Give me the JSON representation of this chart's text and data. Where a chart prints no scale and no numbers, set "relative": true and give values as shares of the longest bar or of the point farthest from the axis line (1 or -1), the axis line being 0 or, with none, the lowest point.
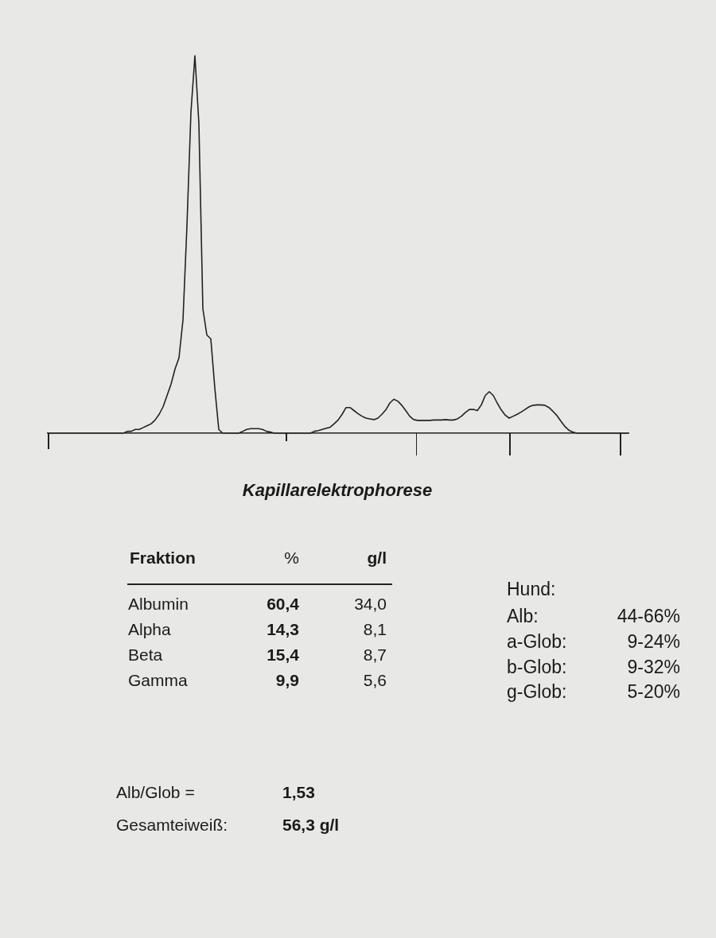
{
  "chart_data": {
    "type": "line",
    "title": "Kapillarelektrophorese",
    "relative": true,
    "categories": [
      null,
      null,
      null,
      null,
      null,
      null,
      null,
      null,
      null,
      null,
      null,
      null,
      null,
      null,
      null,
      null,
      null,
      null,
      null,
      null,
      null,
      null,
      null,
      null,
      null,
      null,
      null,
      null,
      null,
      null,
      null,
      null,
      null,
      null,
      null,
      null,
      null,
      null,
      null,
      null,
      null,
      null,
      null,
      null,
      null,
      null,
      null,
      null,
      null,
      null,
      null,
      null,
      null,
      null,
      null,
      null,
      null,
      null,
      null,
      null,
      null,
      null,
      null,
      null,
      null,
      null,
      null,
      null,
      null,
      null,
      null,
      null,
      null,
      null,
      null,
      null,
      null,
      null,
      null,
      null,
      null,
      null,
      null,
      null,
      null,
      null,
      null,
      null,
      null,
      null,
      null,
      null,
      null,
      null,
      null,
      null,
      null,
      null,
      null,
      null,
      null,
      null,
      null,
      null,
      null,
      null,
      null,
      null,
      null,
      null,
      null,
      null,
      null,
      null,
      null,
      null,
      null,
      null,
      null,
      null,
      null,
      null,
      null,
      null,
      null,
      null,
      null,
      null,
      null,
      null,
      null,
      null,
      null,
      null,
      null,
      null,
      null,
      null,
      null,
      null,
      null,
      null,
      null,
      null,
      null,
      null,
      null
    ],
    "series": [
      {
        "color": "#222222",
        "values": [
          0,
          0,
          0,
          0,
          0,
          0,
          0,
          0,
          0,
          0,
          0,
          0,
          0,
          0,
          0,
          0,
          0,
          0,
          0,
          0,
          0.005,
          0.005,
          0.01,
          0.01,
          0.015,
          0.02,
          0.025,
          0.035,
          0.05,
          0.07,
          0.1,
          0.13,
          0.17,
          0.2,
          0.3,
          0.55,
          0.85,
          1,
          0.82,
          0.33,
          0.26,
          0.25,
          0.12,
          0.01,
          0,
          0,
          0,
          0,
          0,
          0.005,
          0.01,
          0.012,
          0.012,
          0.012,
          0.01,
          0.005,
          0.003,
          0,
          0,
          0,
          0,
          0,
          0,
          0,
          0,
          0,
          0,
          0.005,
          0.007,
          0.01,
          0.013,
          0.016,
          0.025,
          0.035,
          0.05,
          0.068,
          0.068,
          0.06,
          0.052,
          0.045,
          0.04,
          0.038,
          0.036,
          0.04,
          0.05,
          0.062,
          0.08,
          0.09,
          0.085,
          0.074,
          0.06,
          0.045,
          0.036,
          0.034,
          0.034,
          0.034,
          0.034,
          0.035,
          0.035,
          0.035,
          0.036,
          0.035,
          0.035,
          0.038,
          0.045,
          0.055,
          0.063,
          0.063,
          0.06,
          0.075,
          0.1,
          0.11,
          0.1,
          0.08,
          0.062,
          0.048,
          0.04,
          0.045,
          0.05,
          0.056,
          0.063,
          0.07,
          0.074,
          0.075,
          0.075,
          0.074,
          0.068,
          0.058,
          0.047,
          0.032,
          0.018,
          0.008,
          0.003,
          0,
          0,
          0,
          0,
          0,
          0,
          0,
          0,
          0,
          0,
          0,
          0,
          0,
          0
        ]
      }
    ],
    "annotations": [
      "Fraktion",
      "%",
      "g/l",
      "Albumin",
      "60,4",
      "34,0",
      "Alpha",
      "14,3",
      "8,1",
      "Beta",
      "15,4",
      "8,7",
      "Gamma",
      "9,9",
      "5,6",
      "Hund:",
      "Alb:",
      "44-66%",
      "a-Glob:",
      "9-24%",
      "b-Glob:",
      "9-32%",
      "g-Glob:",
      "5-20%",
      "Alb/Glob =",
      "1,53",
      "Gesamteiweiß:",
      "56,3 g/l"
    ]
  }
}
